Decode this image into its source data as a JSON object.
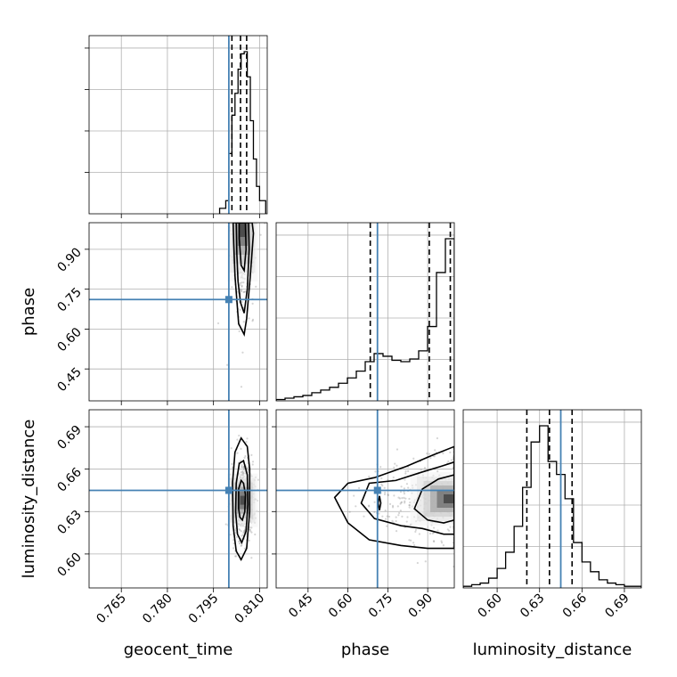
{
  "chart_data": {
    "type": "corner",
    "parameters": [
      "geocent_time",
      "phase",
      "luminosity_distance"
    ],
    "truths": {
      "geocent_time": 0.8,
      "phase": 0.711,
      "luminosity_distance": 0.645
    },
    "axes": {
      "geocent_time": {
        "range": [
          0.7545,
          0.8125
        ],
        "ticks": [
          0.765,
          0.78,
          0.795,
          0.81
        ],
        "tick_labels": [
          "0.765",
          "0.780",
          "0.795",
          "0.810"
        ]
      },
      "phase": {
        "range": [
          0.33,
          1.0
        ],
        "ticks": [
          0.45,
          0.6,
          0.75,
          0.9
        ],
        "tick_labels": [
          "0.45",
          "0.60",
          "0.75",
          "0.90"
        ]
      },
      "luminosity_distance": {
        "range": [
          0.576,
          0.702
        ],
        "ticks": [
          0.6,
          0.63,
          0.66,
          0.69
        ],
        "tick_labels": [
          "0.60",
          "0.63",
          "0.66",
          "0.69"
        ]
      }
    },
    "marginals": [
      {
        "parameter": "geocent_time",
        "bin_edges": [
          0.797,
          0.799,
          0.8,
          0.801,
          0.802,
          0.803,
          0.804,
          0.805,
          0.806,
          0.807,
          0.808,
          0.809,
          0.81,
          0.812
        ],
        "counts": [
          0.05,
          0.12,
          0.55,
          0.9,
          1.1,
          1.32,
          1.46,
          1.48,
          1.25,
          0.85,
          0.5,
          0.25,
          0.12
        ],
        "quantiles": [
          0.801,
          0.8038,
          0.8058
        ]
      },
      {
        "parameter": "phase",
        "bin_edges": [
          0.33,
          0.3635,
          0.397,
          0.4305,
          0.464,
          0.4975,
          0.531,
          0.5645,
          0.598,
          0.6315,
          0.665,
          0.6985,
          0.732,
          0.7655,
          0.799,
          0.8325,
          0.866,
          0.8995,
          0.933,
          0.9665,
          1.0
        ],
        "counts": [
          0.01,
          0.02,
          0.03,
          0.04,
          0.06,
          0.08,
          0.1,
          0.13,
          0.17,
          0.22,
          0.29,
          0.35,
          0.33,
          0.3,
          0.29,
          0.31,
          0.37,
          0.55,
          0.95,
          1.2
        ],
        "quantiles": [
          0.684,
          0.906,
          0.985
        ]
      },
      {
        "parameter": "luminosity_distance",
        "bin_edges": [
          0.576,
          0.582,
          0.588,
          0.594,
          0.6,
          0.606,
          0.612,
          0.618,
          0.624,
          0.63,
          0.636,
          0.642,
          0.648,
          0.654,
          0.66,
          0.666,
          0.672,
          0.678,
          0.684,
          0.69,
          0.696,
          0.702
        ],
        "counts": [
          0.01,
          0.02,
          0.03,
          0.06,
          0.12,
          0.22,
          0.38,
          0.62,
          0.9,
          1.0,
          0.78,
          0.7,
          0.55,
          0.28,
          0.16,
          0.1,
          0.05,
          0.03,
          0.02,
          0.01,
          0.01
        ],
        "quantiles": [
          0.621,
          0.637,
          0.653
        ]
      }
    ],
    "joints": [
      {
        "x": "geocent_time",
        "y": "phase",
        "peak": [
          0.8045,
          0.98
        ],
        "contour_levels": [
          [
            [
              0.8032,
              0.62
            ],
            [
              0.805,
              0.58
            ],
            [
              0.8058,
              0.64
            ],
            [
              0.807,
              0.8
            ],
            [
              0.808,
              0.96
            ],
            [
              0.8076,
              1.0
            ],
            [
              0.8014,
              1.0
            ],
            [
              0.8016,
              0.92
            ],
            [
              0.802,
              0.8
            ]
          ],
          [
            [
              0.8038,
              0.7
            ],
            [
              0.805,
              0.66
            ],
            [
              0.806,
              0.75
            ],
            [
              0.8066,
              0.9
            ],
            [
              0.8064,
              1.0
            ],
            [
              0.8024,
              1.0
            ],
            [
              0.8026,
              0.88
            ],
            [
              0.803,
              0.78
            ]
          ],
          [
            [
              0.804,
              0.84
            ],
            [
              0.805,
              0.82
            ],
            [
              0.8056,
              0.9
            ],
            [
              0.8054,
              1.0
            ],
            [
              0.8034,
              1.0
            ],
            [
              0.8034,
              0.94
            ]
          ]
        ]
      },
      {
        "x": "geocent_time",
        "y": "luminosity_distance",
        "peak": [
          0.8045,
          0.638
        ],
        "contour_levels": [
          [
            [
              0.804,
              0.596
            ],
            [
              0.8058,
              0.604
            ],
            [
              0.8068,
              0.63
            ],
            [
              0.8068,
              0.66
            ],
            [
              0.806,
              0.676
            ],
            [
              0.804,
              0.682
            ],
            [
              0.802,
              0.672
            ],
            [
              0.8012,
              0.65
            ],
            [
              0.8014,
              0.62
            ],
            [
              0.8024,
              0.602
            ]
          ],
          [
            [
              0.8042,
              0.608
            ],
            [
              0.8056,
              0.616
            ],
            [
              0.8062,
              0.635
            ],
            [
              0.806,
              0.656
            ],
            [
              0.8048,
              0.666
            ],
            [
              0.8034,
              0.664
            ],
            [
              0.8024,
              0.65
            ],
            [
              0.8022,
              0.63
            ],
            [
              0.8028,
              0.614
            ]
          ],
          [
            [
              0.8044,
              0.624
            ],
            [
              0.8052,
              0.63
            ],
            [
              0.8054,
              0.642
            ],
            [
              0.8048,
              0.65
            ],
            [
              0.804,
              0.652
            ],
            [
              0.8032,
              0.646
            ],
            [
              0.8032,
              0.632
            ],
            [
              0.8036,
              0.626
            ]
          ]
        ]
      },
      {
        "x": "phase",
        "y": "luminosity_distance",
        "peak": [
          0.985,
          0.639
        ],
        "contour_levels": [
          [
            [
              0.55,
              0.64
            ],
            [
              0.6,
              0.622
            ],
            [
              0.68,
              0.61
            ],
            [
              0.8,
              0.606
            ],
            [
              0.9,
              0.604
            ],
            [
              1.0,
              0.604
            ],
            [
              1.0,
              0.676
            ],
            [
              0.92,
              0.67
            ],
            [
              0.82,
              0.662
            ],
            [
              0.7,
              0.654
            ],
            [
              0.6,
              0.65
            ]
          ],
          [
            [
              0.65,
              0.636
            ],
            [
              0.7,
              0.625
            ],
            [
              0.8,
              0.62
            ],
            [
              0.88,
              0.618
            ],
            [
              0.96,
              0.614
            ],
            [
              1.0,
              0.614
            ],
            [
              1.0,
              0.665
            ],
            [
              0.95,
              0.662
            ],
            [
              0.88,
              0.658
            ],
            [
              0.78,
              0.652
            ],
            [
              0.68,
              0.65
            ]
          ],
          [
            [
              0.85,
              0.632
            ],
            [
              0.9,
              0.624
            ],
            [
              0.96,
              0.622
            ],
            [
              1.0,
              0.624
            ],
            [
              1.0,
              0.656
            ],
            [
              0.94,
              0.653
            ],
            [
              0.88,
              0.646
            ]
          ],
          [
            [
              0.7185,
              0.631
            ],
            [
              0.7235,
              0.636
            ],
            [
              0.7185,
              0.641
            ],
            [
              0.7135,
              0.636
            ]
          ]
        ]
      }
    ]
  }
}
